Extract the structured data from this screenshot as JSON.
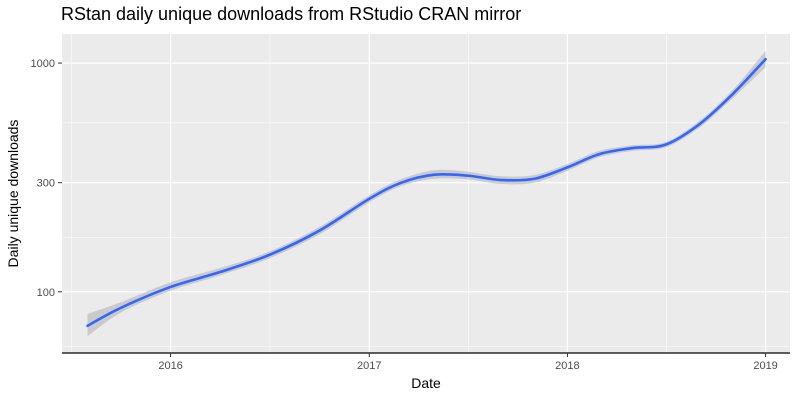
{
  "chart_data": {
    "type": "line",
    "title": "RStan daily unique downloads from RStudio CRAN mirror",
    "xlabel": "Date",
    "ylabel": "Daily unique downloads",
    "x_ticks": [
      {
        "label": "2016",
        "value": "2016-01-01"
      },
      {
        "label": "2017",
        "value": "2017-01-01"
      },
      {
        "label": "2018",
        "value": "2018-01-01"
      },
      {
        "label": "2019",
        "value": "2019-01-01"
      }
    ],
    "y_ticks": [
      100,
      300,
      1000
    ],
    "y_scale": "log10",
    "xlim": [
      "2015-06-15",
      "2019-02-15"
    ],
    "ylim": [
      54,
      1340
    ],
    "grid": true,
    "colors": {
      "line": "#3366FF",
      "ribbon": "#BFBFBF",
      "panel": "#EBEBEB",
      "grid": "#FFFFFF"
    },
    "series": [
      {
        "x": [
          "2015-08-01",
          "2015-10-01",
          "2016-01-01",
          "2016-04-01",
          "2016-07-01",
          "2016-10-01",
          "2017-01-01",
          "2017-03-01",
          "2017-05-01",
          "2017-07-01",
          "2017-09-01",
          "2017-11-01",
          "2018-01-01",
          "2018-03-01",
          "2018-05-01",
          "2018-07-01",
          "2018-09-01",
          "2018-11-01",
          "2019-01-01"
        ],
        "y": [
          71,
          85,
          105,
          122,
          145,
          185,
          255,
          300,
          325,
          322,
          308,
          312,
          350,
          400,
          425,
          440,
          540,
          730,
          1040
        ],
        "ci_low": [
          64,
          81,
          101,
          118,
          140,
          178,
          246,
          290,
          312,
          310,
          296,
          300,
          338,
          388,
          413,
          428,
          522,
          700,
          960
        ],
        "ci_high": [
          80,
          90,
          110,
          127,
          150,
          192,
          264,
          311,
          340,
          335,
          320,
          324,
          362,
          413,
          437,
          452,
          558,
          760,
          1130
        ]
      }
    ]
  }
}
